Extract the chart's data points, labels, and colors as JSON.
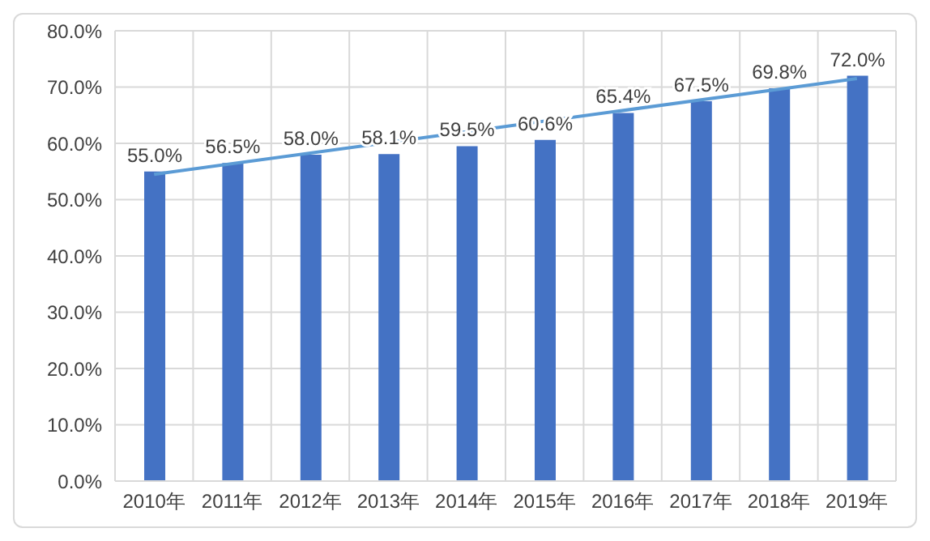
{
  "chart_data": {
    "type": "bar",
    "categories": [
      "2010年",
      "2011年",
      "2012年",
      "2013年",
      "2014年",
      "2015年",
      "2016年",
      "2017年",
      "2018年",
      "2019年"
    ],
    "series": [
      {
        "color": "#4472c4",
        "values": [
          55.0,
          56.5,
          58.0,
          58.1,
          59.5,
          60.6,
          65.4,
          67.5,
          69.8,
          72.0
        ],
        "value_labels": [
          "55.0%",
          "56.5%",
          "58.0%",
          "58.1%",
          "59.5%",
          "60.6%",
          "65.4%",
          "67.5%",
          "69.8%",
          "72.0%"
        ]
      },
      {
        "type": "line",
        "color": "#5b9bd5",
        "x": [
          "2010年",
          "2019年"
        ],
        "values": [
          54.5,
          71.5
        ]
      }
    ],
    "ylim": [
      0,
      80
    ],
    "yticks": [
      {
        "value": 0,
        "label": "0.0%"
      },
      {
        "value": 10,
        "label": "10.0%"
      },
      {
        "value": 20,
        "label": "20.0%"
      },
      {
        "value": 30,
        "label": "30.0%"
      },
      {
        "value": 40,
        "label": "40.0%"
      },
      {
        "value": 50,
        "label": "50.0%"
      },
      {
        "value": 60,
        "label": "60.0%"
      },
      {
        "value": 70,
        "label": "70.0%"
      },
      {
        "value": 80,
        "label": "80.0%"
      }
    ],
    "grid": true,
    "marker": "none",
    "line_style": "solid"
  }
}
